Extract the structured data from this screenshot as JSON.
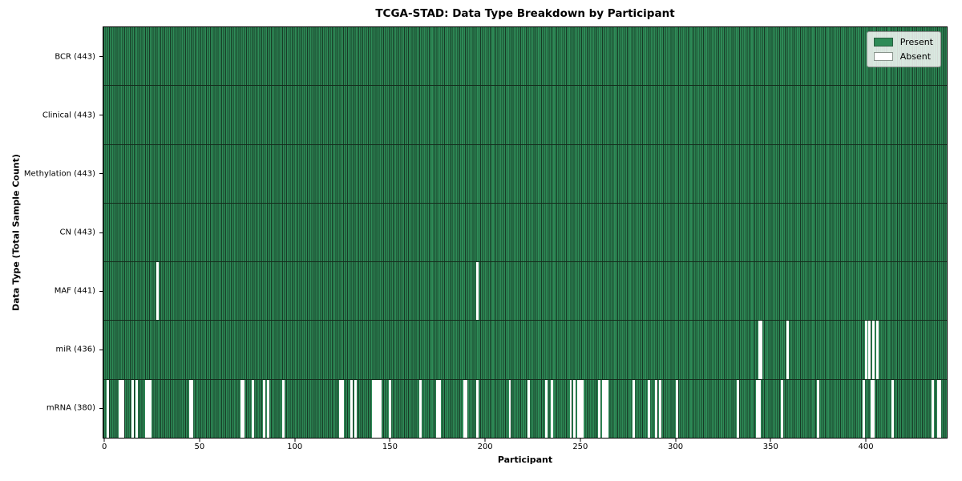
{
  "chart_data": {
    "type": "heatmap",
    "title": "TCGA-STAD: Data Type Breakdown by Participant",
    "xlabel": "Participant",
    "ylabel": "Data Type (Total Sample Count)",
    "x_ticks": [
      0,
      50,
      100,
      150,
      200,
      250,
      300,
      350,
      400
    ],
    "x_range": [
      -0.5,
      442.5
    ],
    "n_participants": 443,
    "grid": false,
    "legend_position": "upper right",
    "legend": [
      {
        "label": "Present",
        "color": "#2e8b57"
      },
      {
        "label": "Absent",
        "color": "#ffffff"
      }
    ],
    "colors": {
      "present_fill": "#2e8b57",
      "bar_edge": "#173a26",
      "absent_fill": "#ffffff",
      "spine": "#000000",
      "background": "#ffffff"
    },
    "rows": [
      {
        "name": "bcr",
        "label": "BCR (443)",
        "data_type": "BCR",
        "present_count": 443,
        "absent": []
      },
      {
        "name": "clinical",
        "label": "Clinical (443)",
        "data_type": "Clinical",
        "present_count": 443,
        "absent": []
      },
      {
        "name": "methylation",
        "label": "Methylation (443)",
        "data_type": "Methylation",
        "present_count": 443,
        "absent": []
      },
      {
        "name": "cn",
        "label": "CN (443)",
        "data_type": "CN",
        "present_count": 443,
        "absent": []
      },
      {
        "name": "maf",
        "label": "MAF (441)",
        "data_type": "MAF",
        "present_count": 441,
        "absent": [
          28,
          196
        ]
      },
      {
        "name": "mir",
        "label": "miR (436)",
        "data_type": "miR",
        "present_count": 436,
        "absent": [
          344,
          345,
          359,
          400,
          402,
          404,
          406
        ]
      },
      {
        "name": "mrna",
        "label": "mRNA (380)",
        "data_type": "mRNA",
        "present_count": 380,
        "absent": [
          2,
          8,
          9,
          10,
          15,
          17,
          22,
          23,
          24,
          45,
          46,
          72,
          73,
          78,
          84,
          86,
          94,
          124,
          125,
          130,
          132,
          141,
          142,
          143,
          144,
          145,
          150,
          166,
          175,
          176,
          189,
          190,
          196,
          213,
          223,
          232,
          235,
          245,
          247,
          249,
          250,
          251,
          260,
          262,
          263,
          264,
          278,
          286,
          290,
          292,
          301,
          333,
          343,
          344,
          356,
          375,
          399,
          403,
          404,
          414,
          435,
          438,
          439
        ]
      }
    ]
  }
}
